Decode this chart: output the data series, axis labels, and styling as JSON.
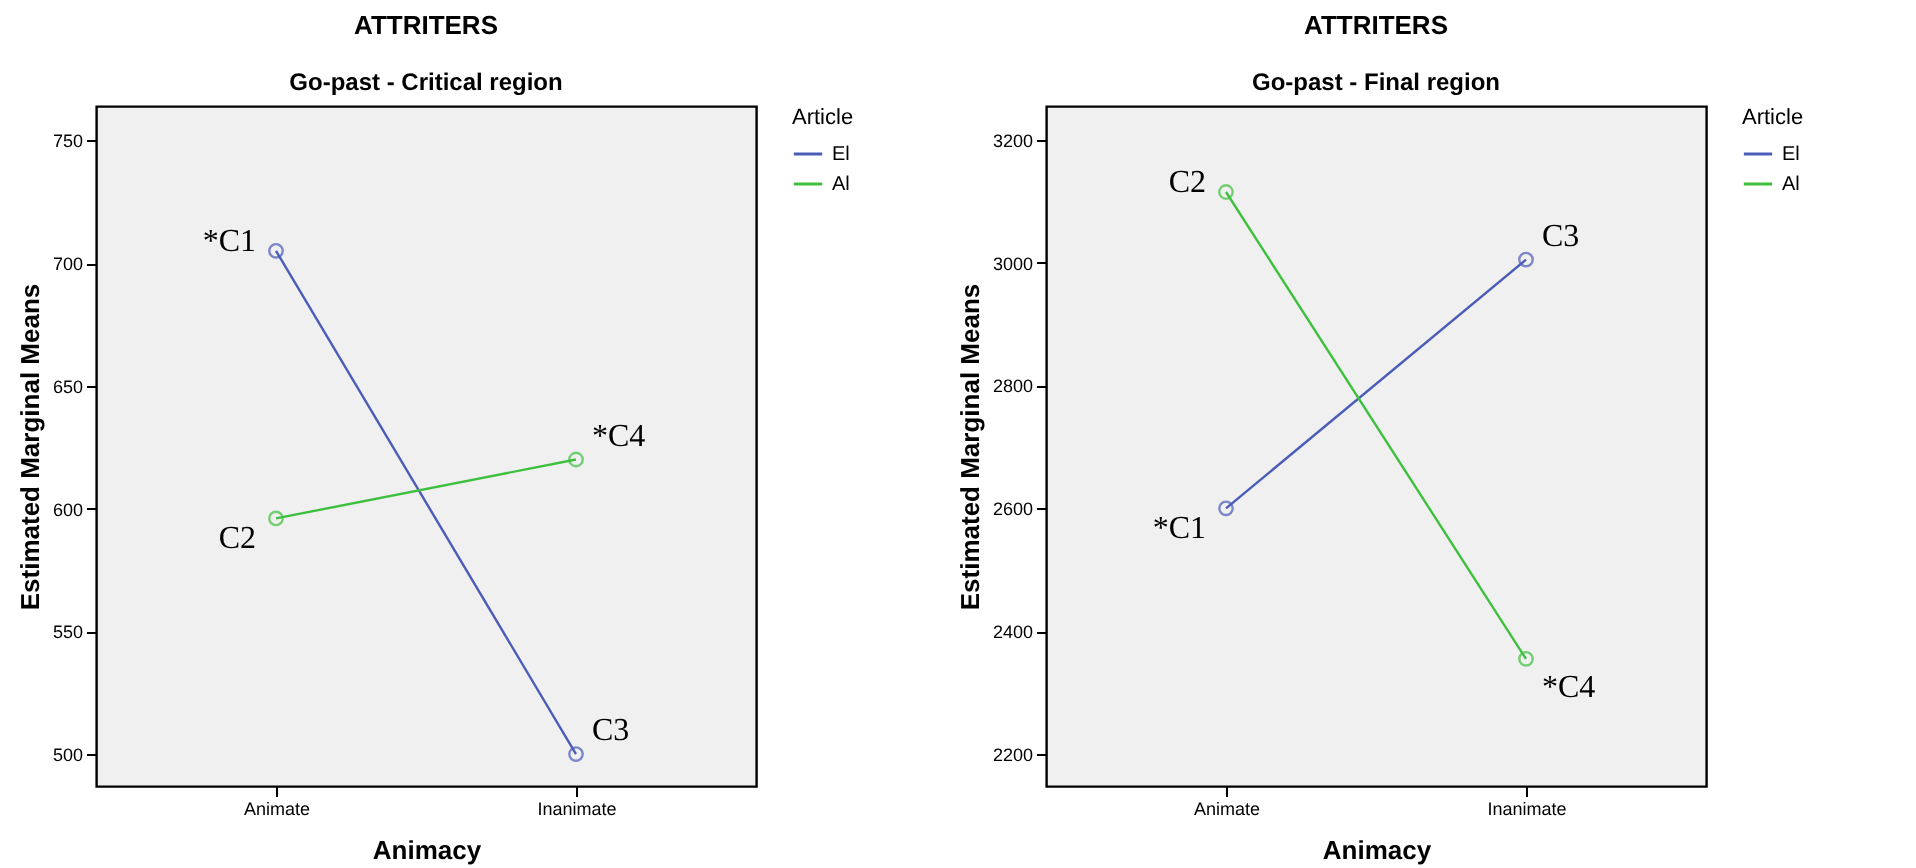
{
  "chart_data": [
    {
      "type": "line",
      "title": "ATTRITERS",
      "subtitle": "Go-past - Critical region",
      "xlabel": "Animacy",
      "ylabel": "Estimated Marginal Means",
      "legend_title": "Article",
      "categories": [
        "Animate",
        "Inanimate"
      ],
      "series": [
        {
          "name": "El",
          "color": "#4a5cb8",
          "values": [
            705,
            500
          ]
        },
        {
          "name": "Al",
          "color": "#3ec03e",
          "values": [
            596,
            620
          ]
        }
      ],
      "ylim": [
        487,
        764
      ],
      "yticks": [
        500,
        550,
        600,
        650,
        700,
        750
      ],
      "grid": false,
      "legend": "top right",
      "marker": "circle",
      "line_style": "solid",
      "annotations": [
        {
          "text": "*C1",
          "x": "Animate",
          "y": 705
        },
        {
          "text": "C2",
          "x": "Animate",
          "y": 596
        },
        {
          "text": "C3",
          "x": "Inanimate",
          "y": 500
        },
        {
          "text": "*C4",
          "x": "Inanimate",
          "y": 620
        }
      ]
    },
    {
      "type": "line",
      "title": "ATTRITERS",
      "subtitle": "Go-past - Final region",
      "xlabel": "Animacy",
      "ylabel": "Estimated Marginal Means",
      "legend_title": "Article",
      "categories": [
        "Animate",
        "Inanimate"
      ],
      "series": [
        {
          "name": "El",
          "color": "#4a5cb8",
          "values": [
            2600,
            3005
          ]
        },
        {
          "name": "Al",
          "color": "#3ec03e",
          "values": [
            3115,
            2355
          ]
        }
      ],
      "ylim": [
        2148,
        3255
      ],
      "yticks": [
        2200,
        2400,
        2600,
        2800,
        3000,
        3200
      ],
      "grid": false,
      "legend": "top right",
      "marker": "circle",
      "line_style": "solid",
      "annotations": [
        {
          "text": "*C1",
          "x": "Animate",
          "y": 2600
        },
        {
          "text": "C2",
          "x": "Animate",
          "y": 3115
        },
        {
          "text": "C3",
          "x": "Inanimate",
          "y": 3005
        },
        {
          "text": "*C4",
          "x": "Inanimate",
          "y": 2355
        }
      ]
    }
  ]
}
